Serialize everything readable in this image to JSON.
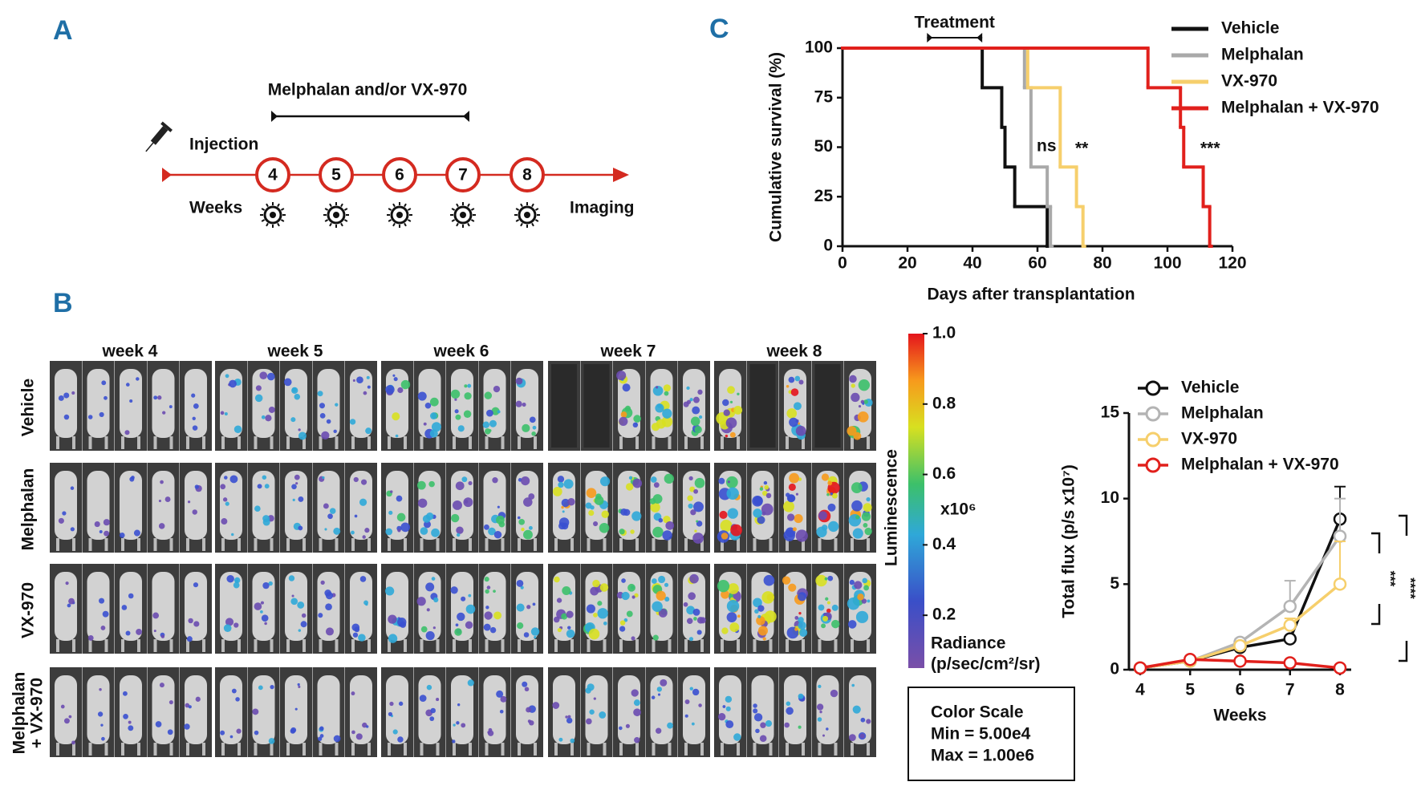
{
  "panel_labels": [
    "A",
    "B",
    "C"
  ],
  "panel_a": {
    "treatment": "Melphalan and/or VX-970",
    "injection": "Injection",
    "weeks_label": "Weeks",
    "imaging": "Imaging",
    "weeks": [
      "4",
      "5",
      "6",
      "7",
      "8"
    ]
  },
  "panel_b": {
    "weeks": [
      "week 4",
      "week 5",
      "week 6",
      "week 7",
      "week 8"
    ],
    "row_labels": [
      [
        "Vehicle"
      ],
      [
        "Melphalan"
      ],
      [
        "VX-970"
      ],
      [
        "Melphalan",
        "+ VX-970"
      ]
    ],
    "colorbar": {
      "title": "Luminescence",
      "unit": "x10⁶",
      "radiance": [
        "Radiance",
        "(p/sec/cm²/sr)"
      ],
      "lim": [
        0.05,
        1.0
      ],
      "ticks": [
        0.2,
        0.4,
        0.6,
        0.8,
        {
          "value": 1.0,
          "label": "1.0"
        }
      ]
    },
    "color_scale": [
      "Color Scale",
      "Min = 5.00e4",
      "Max = 1.00e6"
    ]
  },
  "chart_data": [
    {
      "type": "step",
      "xlabel": "Days after transplantation",
      "ylabel": "Cumulative survival (%)",
      "xlim": [
        0,
        120
      ],
      "xticks": [
        0,
        20,
        40,
        60,
        80,
        100,
        120
      ],
      "ylim": [
        0,
        100
      ],
      "yticks": [
        0,
        25,
        50,
        75,
        100
      ],
      "treatment": {
        "label": "Treatment",
        "range": [
          26,
          43
        ]
      },
      "annotations": [
        "ns",
        "**",
        "***"
      ],
      "series": [
        {
          "name": "Vehicle",
          "color": "#111111",
          "x": [
            0,
            43,
            49,
            50,
            53,
            63
          ],
          "values": [
            100,
            80,
            60,
            40,
            20,
            0
          ]
        },
        {
          "name": "Melphalan",
          "color": "#a9a9a9",
          "x": [
            0,
            56,
            58,
            63,
            64
          ],
          "values": [
            100,
            80,
            40,
            20,
            0
          ]
        },
        {
          "name": "VX-970",
          "color": "#f6cf6c",
          "x": [
            0,
            57,
            67,
            72,
            74
          ],
          "values": [
            100,
            80,
            40,
            20,
            0
          ]
        },
        {
          "name": "Melphalan + VX-970",
          "color": "#e1201c",
          "x": [
            0,
            94,
            104,
            105,
            111,
            113
          ],
          "values": [
            100,
            80,
            60,
            40,
            20,
            0
          ]
        }
      ]
    },
    {
      "type": "line",
      "xlabel": "Weeks",
      "ylabel": "Total flux (p/s x10⁷)",
      "x": [
        4,
        5,
        6,
        7,
        8
      ],
      "xlim": [
        4,
        8
      ],
      "xticks": [
        4,
        5,
        6,
        7,
        8
      ],
      "ylim": [
        0,
        15
      ],
      "yticks": [
        0,
        5,
        10,
        15
      ],
      "significance": [
        "***",
        "****"
      ],
      "series": [
        {
          "name": "Vehicle",
          "color": "#111111",
          "values": [
            0.1,
            0.5,
            1.3,
            1.8,
            8.8
          ],
          "errors": [
            0,
            0,
            0,
            0,
            1.9
          ]
        },
        {
          "name": "Melphalan",
          "color": "#b4b4b4",
          "values": [
            0.1,
            0.5,
            1.6,
            3.7,
            7.8
          ],
          "errors": [
            0,
            0,
            0.2,
            1.5,
            2.2
          ]
        },
        {
          "name": "VX-970",
          "color": "#f6cf6c",
          "values": [
            0.1,
            0.5,
            1.4,
            2.6,
            5.0
          ],
          "errors": [
            0,
            0,
            0,
            0.4,
            2.5
          ]
        },
        {
          "name": "Melphalan + VX-970",
          "color": "#e1201c",
          "values": [
            0.1,
            0.6,
            0.5,
            0.4,
            0.1
          ],
          "errors": [
            0,
            0,
            0,
            0,
            0
          ]
        }
      ]
    }
  ]
}
